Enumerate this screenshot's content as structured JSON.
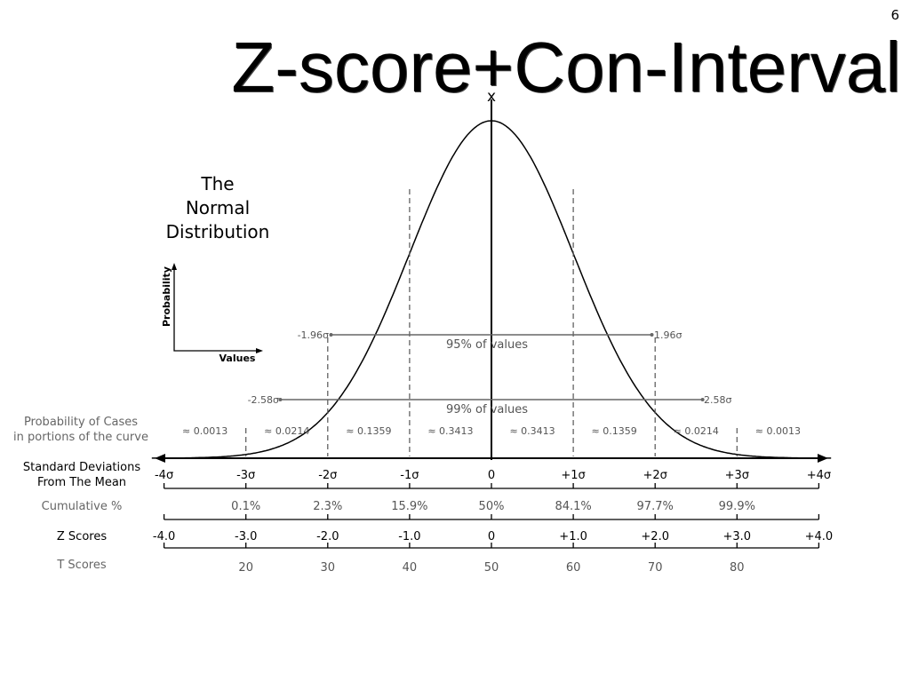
{
  "slide": {
    "number": "6",
    "title": "Z-score+Con-Interval"
  },
  "diagram": {
    "axis_x_label": "x",
    "heading": [
      "The",
      "Normal",
      "Distribution"
    ],
    "inset": {
      "y_label": "Probability",
      "x_label": "Values"
    },
    "interval_95": {
      "left": "-1.96σ",
      "right": "1.96σ",
      "label": "95% of values"
    },
    "interval_99": {
      "left": "-2.58σ",
      "right": "2.58σ",
      "label": "99% of values"
    },
    "row_labels": {
      "probability": [
        "Probability of Cases",
        "in portions of the curve"
      ],
      "std_dev": [
        "Standard Deviations",
        "From The Mean"
      ],
      "cumulative": "Cumulative %",
      "z_scores": "Z Scores",
      "t_scores": "T Scores"
    },
    "probabilities": [
      "≈ 0.0013",
      "≈ 0.0214",
      "≈ 0.1359",
      "≈ 0.3413",
      "≈ 0.3413",
      "≈ 0.1359",
      "≈ 0.0214",
      "≈ 0.0013"
    ],
    "sigma_labels": [
      "-4σ",
      "-3σ",
      "-2σ",
      "-1σ",
      "0",
      "+1σ",
      "+2σ",
      "+3σ",
      "+4σ"
    ],
    "cumulative": [
      "",
      "0.1%",
      "2.3%",
      "15.9%",
      "50%",
      "84.1%",
      "97.7%",
      "99.9%",
      ""
    ],
    "z_scores": [
      "-4.0",
      "-3.0",
      "-2.0",
      "-1.0",
      "0",
      "+1.0",
      "+2.0",
      "+3.0",
      "+4.0"
    ],
    "t_scores": [
      "",
      "20",
      "30",
      "40",
      "50",
      "60",
      "70",
      "80",
      ""
    ]
  }
}
